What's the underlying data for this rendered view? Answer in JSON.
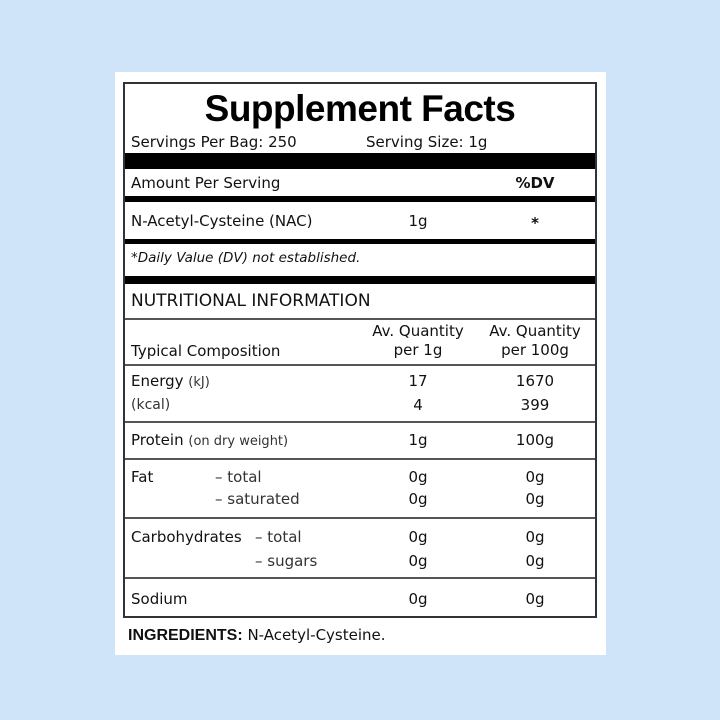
{
  "title": "Supplement Facts",
  "servings_per_bag": "Servings Per Bag: 250",
  "serving_size": "Serving Size: 1g",
  "amount_per_serving": "Amount Per Serving",
  "dv_header": "%DV",
  "ingredient": {
    "name": "N-Acetyl-Cysteine (NAC)",
    "amount": "1g",
    "dv": "*"
  },
  "footnote": "*Daily Value (DV) not established.",
  "nutrition": {
    "heading": "NUTRITIONAL INFORMATION",
    "col_label": "Typical Composition",
    "col1": [
      "Av. Quantity",
      "per 1g"
    ],
    "col2": [
      "Av. Quantity",
      "per 100g"
    ],
    "rows": {
      "energy_kj": {
        "label": "Energy",
        "unit": "(kJ)",
        "v1": "17",
        "v2": "1670"
      },
      "energy_kcal": {
        "label": "(kcal)",
        "v1": "4",
        "v2": "399"
      },
      "protein": {
        "label": "Protein",
        "note": "(on dry weight)",
        "v1": "1g",
        "v2": "100g"
      },
      "fat_total": {
        "label": "Fat",
        "sub": "– total",
        "v1": "0g",
        "v2": "0g"
      },
      "fat_sat": {
        "sub": "– saturated",
        "v1": "0g",
        "v2": "0g"
      },
      "carb_total": {
        "label": "Carbohydrates",
        "sub": "– total",
        "v1": "0g",
        "v2": "0g"
      },
      "carb_sugars": {
        "sub": "– sugars",
        "v1": "0g",
        "v2": "0g"
      },
      "sodium": {
        "label": "Sodium",
        "v1": "0g",
        "v2": "0g"
      }
    }
  },
  "ingredients": {
    "label": "INGREDIENTS:",
    "text": "N-Acetyl-Cysteine."
  }
}
